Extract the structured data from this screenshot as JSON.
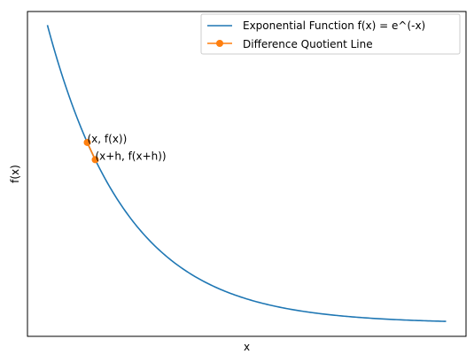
{
  "chart_data": {
    "type": "line",
    "xlabel": "x",
    "ylabel": "f(x)",
    "xlim": [
      -0.25,
      5.25
    ],
    "ylim": [
      -0.0434,
      1.0456
    ],
    "xticks_visible": false,
    "yticks_visible": false,
    "grid": false,
    "legend_placement": "upper-right",
    "series": [
      {
        "name": "Exponential Function f(x) = e^(-x)",
        "color": "#1f77b4",
        "function": "exp(-x)",
        "x_range": [
          0,
          5
        ],
        "marker": "none"
      },
      {
        "name": "Difference Quotient Line",
        "color": "#ff7f0e",
        "marker": "circle",
        "x": [
          0.5,
          0.6
        ],
        "y": [
          0.6065,
          0.5488
        ]
      }
    ],
    "annotations": [
      {
        "text": "(x, f(x))",
        "x": 0.5,
        "y": 0.6065
      },
      {
        "text": "(x+h, f(x+h))",
        "x": 0.6,
        "y": 0.5488
      }
    ]
  }
}
